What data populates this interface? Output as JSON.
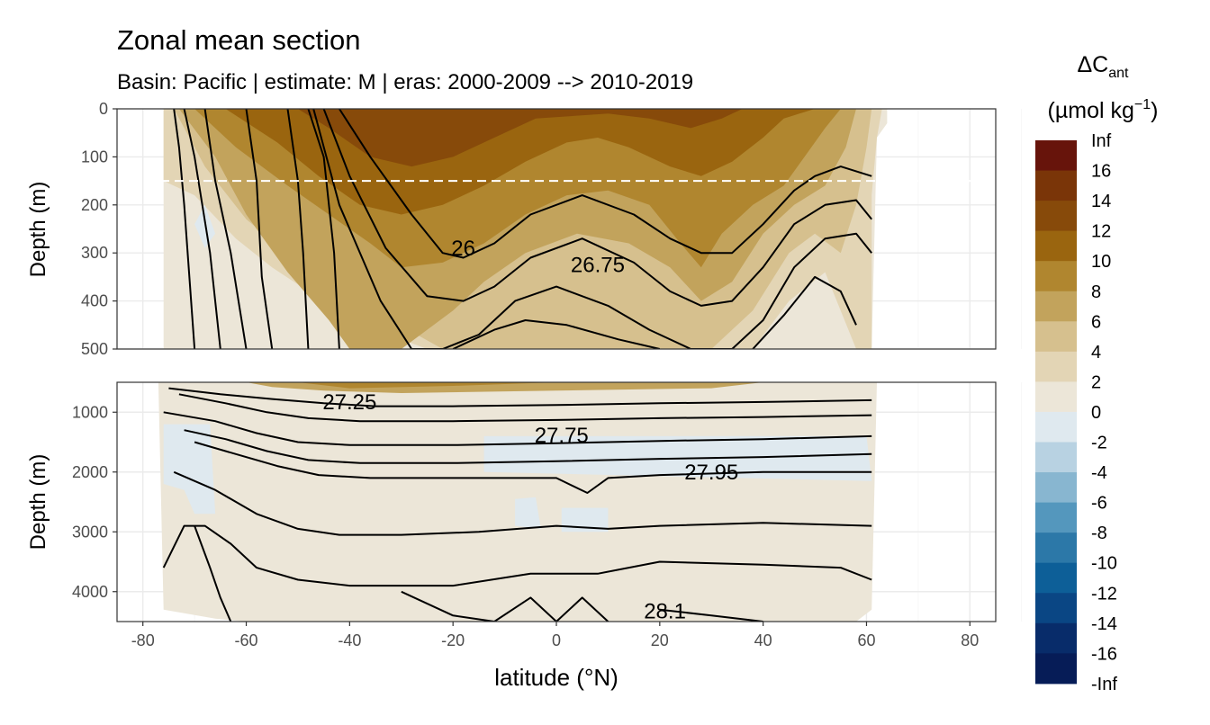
{
  "chart_data": {
    "type": "heatmap",
    "title": "Zonal mean section",
    "subtitle": "Basin: Pacific | estimate: M  | eras: 2000-2009 --> 2010-2019",
    "xlabel": "latitude (°N)",
    "ylabel": "Depth (m)",
    "xlim": [
      -85,
      85
    ],
    "x_ticks": [
      -80,
      -60,
      -40,
      -20,
      0,
      20,
      40,
      60,
      80
    ],
    "panels": [
      {
        "name": "upper",
        "ylim": [
          0,
          500
        ],
        "y_ticks": [
          0,
          100,
          200,
          300,
          400,
          500
        ],
        "reference_depth_line": 150
      },
      {
        "name": "lower",
        "ylim": [
          500,
          4500
        ],
        "y_ticks": [
          1000,
          2000,
          3000,
          4000
        ]
      }
    ],
    "legend": {
      "title": "ΔC",
      "title_subscript": "ant",
      "unit": "(µmol kg",
      "unit_superscript": "−1",
      "unit_close": ")",
      "placement": "right",
      "labels": [
        "Inf",
        "16",
        "14",
        "12",
        "10",
        "8",
        "6",
        "4",
        "2",
        "0",
        "-2",
        "-4",
        "-6",
        "-8",
        "-10",
        "-12",
        "-14",
        "-16",
        "-Inf"
      ],
      "colors": [
        "#67140b",
        "#7a3508",
        "#874a0a",
        "#9a650f",
        "#b0862f",
        "#c2a35c",
        "#d6c08e",
        "#e3d5b5",
        "#ece6d8",
        "#dfe9ef",
        "#b8d2e2",
        "#88b6d0",
        "#5497bd",
        "#2c78a8",
        "#0d5f98",
        "#0a4684",
        "#082c6a",
        "#061c57"
      ]
    },
    "contour_labels": [
      {
        "text": "26",
        "x": -18,
        "depth": 290
      },
      {
        "text": "26.75",
        "x": 8,
        "depth": 325
      },
      {
        "text": "27.25",
        "x": -40,
        "depth": 830
      },
      {
        "text": "27.75",
        "x": 1,
        "depth": 1390
      },
      {
        "text": "27.95",
        "x": 30,
        "depth": 2000
      },
      {
        "text": "28.1",
        "x": 21,
        "depth": 4330
      }
    ],
    "isopycnals_upper": [
      {
        "x": [
          -74,
          -73,
          -72,
          -70
        ],
        "depth": [
          0,
          80,
          200,
          500
        ]
      },
      {
        "x": [
          -72,
          -70,
          -67,
          -65
        ],
        "depth": [
          0,
          100,
          300,
          500
        ]
      },
      {
        "x": [
          -68,
          -66,
          -63,
          -60
        ],
        "depth": [
          0,
          150,
          300,
          500
        ]
      },
      {
        "x": [
          -60,
          -58,
          -57,
          -55
        ],
        "depth": [
          0,
          150,
          350,
          500
        ]
      },
      {
        "x": [
          -52,
          -50,
          -49,
          -48
        ],
        "depth": [
          0,
          150,
          300,
          500
        ]
      },
      {
        "x": [
          -48,
          -45,
          -43,
          -42
        ],
        "depth": [
          0,
          100,
          300,
          500
        ]
      },
      {
        "x": [
          -42,
          -36,
          -28,
          -22,
          -18,
          -12,
          -5,
          5,
          15,
          22,
          28,
          34,
          40,
          46,
          50,
          55,
          61
        ],
        "depth": [
          0,
          100,
          220,
          300,
          310,
          280,
          220,
          180,
          220,
          270,
          300,
          300,
          240,
          170,
          140,
          120,
          140
        ]
      },
      {
        "x": [
          -45,
          -40,
          -33,
          -25,
          -18,
          -12,
          -5,
          5,
          15,
          22,
          28,
          34,
          40,
          46,
          52,
          58,
          61
        ],
        "depth": [
          0,
          140,
          290,
          390,
          400,
          370,
          310,
          270,
          320,
          380,
          410,
          400,
          330,
          240,
          200,
          190,
          230
        ]
      },
      {
        "x": [
          -47,
          -42,
          -34,
          -28,
          -22,
          -15,
          -8,
          0,
          10,
          18,
          26,
          34,
          40,
          46,
          52,
          58,
          61
        ],
        "depth": [
          0,
          200,
          400,
          500,
          500,
          470,
          400,
          370,
          410,
          460,
          500,
          500,
          440,
          330,
          270,
          260,
          300
        ]
      },
      {
        "x": [
          -20,
          -12,
          -6,
          2,
          12,
          20
        ],
        "depth": [
          500,
          460,
          440,
          450,
          480,
          500
        ]
      },
      {
        "x": [
          38,
          44,
          50,
          55,
          58
        ],
        "depth": [
          500,
          430,
          350,
          380,
          450
        ]
      }
    ],
    "isopycnals_lower": [
      {
        "x": [
          -75,
          -65,
          -55,
          -45,
          -35,
          -20,
          0,
          20,
          40,
          61
        ],
        "depth": [
          600,
          700,
          780,
          850,
          900,
          900,
          880,
          850,
          830,
          800
        ]
      },
      {
        "x": [
          -73,
          -64,
          -56,
          -48,
          -38,
          -20,
          0,
          20,
          40,
          61
        ],
        "depth": [
          700,
          850,
          1000,
          1100,
          1150,
          1150,
          1130,
          1100,
          1080,
          1050
        ]
      },
      {
        "x": [
          -76,
          -66,
          -58,
          -50,
          -40,
          -20,
          0,
          20,
          40,
          61
        ],
        "depth": [
          1000,
          1150,
          1350,
          1500,
          1550,
          1550,
          1520,
          1480,
          1450,
          1400
        ]
      },
      {
        "x": [
          -72,
          -64,
          -56,
          -48,
          -38,
          -20,
          0,
          20,
          40,
          61
        ],
        "depth": [
          1300,
          1450,
          1650,
          1800,
          1850,
          1850,
          1820,
          1780,
          1750,
          1700
        ]
      },
      {
        "x": [
          -70,
          -62,
          -54,
          -46,
          -36,
          -20,
          0,
          6,
          10,
          20,
          40,
          61
        ],
        "depth": [
          1500,
          1700,
          1900,
          2050,
          2100,
          2100,
          2100,
          2350,
          2100,
          2050,
          2000,
          2000
        ]
      },
      {
        "x": [
          -74,
          -66,
          -58,
          -50,
          -42,
          -30,
          -15,
          0,
          10,
          20,
          40,
          61
        ],
        "depth": [
          2000,
          2300,
          2700,
          2950,
          3050,
          3050,
          3000,
          2900,
          2950,
          2900,
          2850,
          2900
        ]
      },
      {
        "x": [
          -76,
          -72,
          -68,
          -63,
          -58,
          -50,
          -40,
          -20,
          -5,
          8,
          20,
          40,
          55,
          61
        ],
        "depth": [
          3600,
          2900,
          2900,
          3200,
          3600,
          3800,
          3900,
          3900,
          3700,
          3700,
          3500,
          3550,
          3600,
          3800
        ]
      },
      {
        "x": [
          -70,
          -67,
          -65,
          -63
        ],
        "depth": [
          2900,
          3600,
          4100,
          4500
        ]
      },
      {
        "x": [
          -30,
          -20,
          -12,
          -5,
          0,
          5,
          10
        ],
        "depth": [
          4000,
          4400,
          4500,
          4100,
          4500,
          4100,
          4500
        ]
      },
      {
        "x": [
          20,
          30,
          40
        ],
        "depth": [
          4300,
          4400,
          4500
        ]
      }
    ]
  }
}
